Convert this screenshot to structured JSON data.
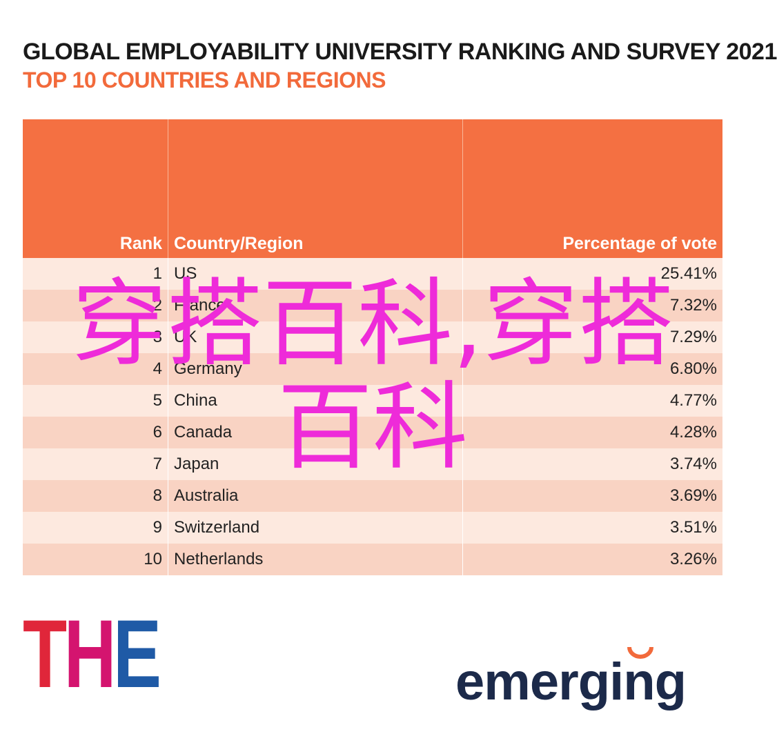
{
  "header": {
    "title": "GLOBAL EMPLOYABILITY UNIVERSITY RANKING AND SURVEY 2021",
    "subtitle": "TOP 10 COUNTRIES AND REGIONS"
  },
  "table": {
    "columns": [
      "Rank",
      "Country/Region",
      "Percentage of vote"
    ],
    "rows": [
      [
        "1",
        "US",
        "25.41%"
      ],
      [
        "2",
        "France",
        "7.32%"
      ],
      [
        "3",
        "UK",
        "7.29%"
      ],
      [
        "4",
        "Germany",
        "6.80%"
      ],
      [
        "5",
        "China",
        "4.77%"
      ],
      [
        "6",
        "Canada",
        "4.28%"
      ],
      [
        "7",
        "Japan",
        "3.74%"
      ],
      [
        "8",
        "Australia",
        "3.69%"
      ],
      [
        "9",
        "Switzerland",
        "3.51%"
      ],
      [
        "10",
        "Netherlands",
        "3.26%"
      ]
    ]
  },
  "logos": {
    "left": "THE",
    "right": "emerging"
  },
  "watermark": "穿搭百科,穿搭百科"
}
